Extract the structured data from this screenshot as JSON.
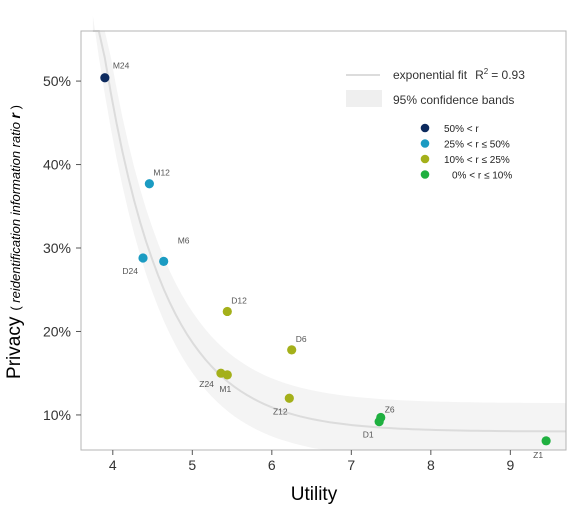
{
  "chart_data": {
    "type": "scatter",
    "xlabel": "Utility",
    "ylabel_main": "Privacy",
    "ylabel_sub_open": "( ",
    "ylabel_sub": "reidentification information ratio ",
    "ylabel_var": "r",
    "ylabel_sub_close": " )",
    "xlim": [
      3.6,
      9.7
    ],
    "ylim": [
      0.058,
      0.56
    ],
    "xticks": [
      4,
      5,
      6,
      7,
      8,
      9
    ],
    "xtick_labels": [
      "4",
      "5",
      "6",
      "7",
      "8",
      "9"
    ],
    "yticks": [
      0.1,
      0.2,
      0.3,
      0.4,
      0.5
    ],
    "ytick_labels": [
      "10%",
      "20%",
      "30%",
      "40%",
      "50%"
    ],
    "grid": false,
    "fit": {
      "label": "exponential fit",
      "r2_label": "R",
      "r2_sup": "2",
      "r2_value": "= 0.93",
      "band_label": "95% confidence bands",
      "color": "#dcdcdc",
      "band_color": "#f4f4f4"
    },
    "classes": [
      {
        "key": "c1",
        "color": "#0d2a5e",
        "label": "50% <  r"
      },
      {
        "key": "c2",
        "color": "#1b9bc2",
        "label": "25% <  r  ≤  50%"
      },
      {
        "key": "c3",
        "color": "#a4b01a",
        "label": "10% <  r  ≤  25%"
      },
      {
        "key": "c4",
        "color": "#1fb040",
        "label": "0% <  r  ≤  10%"
      }
    ],
    "points": [
      {
        "label": "M24",
        "x": 3.9,
        "y": 0.504,
        "class": "c1"
      },
      {
        "label": "M12",
        "x": 4.46,
        "y": 0.377,
        "class": "c2"
      },
      {
        "label": "D24",
        "x": 4.38,
        "y": 0.288,
        "class": "c2"
      },
      {
        "label": "M6",
        "x": 4.64,
        "y": 0.284,
        "class": "c2"
      },
      {
        "label": "D12",
        "x": 5.44,
        "y": 0.224,
        "class": "c3"
      },
      {
        "label": "D6",
        "x": 6.25,
        "y": 0.178,
        "class": "c3"
      },
      {
        "label": "Z24",
        "x": 5.36,
        "y": 0.15,
        "class": "c3"
      },
      {
        "label": "M1",
        "x": 5.44,
        "y": 0.148,
        "class": "c3"
      },
      {
        "label": "Z12",
        "x": 6.22,
        "y": 0.12,
        "class": "c3"
      },
      {
        "label": "Z6",
        "x": 7.37,
        "y": 0.097,
        "class": "c4"
      },
      {
        "label": "D1",
        "x": 7.35,
        "y": 0.092,
        "class": "c4"
      },
      {
        "label": "Z1",
        "x": 9.45,
        "y": 0.069,
        "class": "c4"
      }
    ]
  }
}
